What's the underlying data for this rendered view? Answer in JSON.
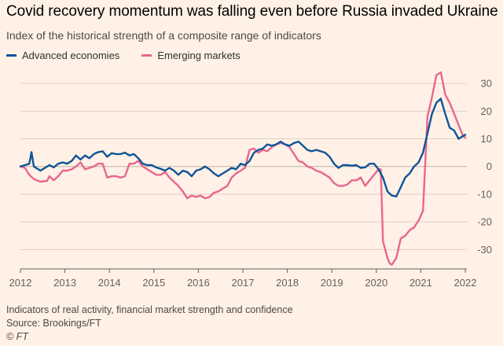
{
  "title": "Covid recovery momentum was falling even before Russia invaded Ukraine",
  "subtitle": "Index of the historical strength of a composite range of indicators",
  "footer": {
    "note": "Indicators of real activity, financial market strength and confidence",
    "source": "Source: Brookings/FT",
    "credit": "© FT"
  },
  "colors": {
    "background": "#fff1e5",
    "advanced": "#0f5499",
    "emerging": "#e8668f",
    "grid": "#dcd0c5",
    "zero": "#bfb3a8"
  },
  "chart_data": {
    "type": "line",
    "title": "Covid recovery momentum was falling even before Russia invaded Ukraine",
    "ylabel": "Index of the historical strength of a composite range of indicators",
    "xlabel": "",
    "xlim": [
      2012,
      2022
    ],
    "ylim": [
      -37,
      36
    ],
    "yticks": [
      30,
      20,
      10,
      0,
      -10,
      -20,
      -30
    ],
    "ytick_labels": [
      "30",
      "20",
      "10",
      "0",
      "-10",
      "-20",
      "-30"
    ],
    "xticks": [
      2012,
      2013,
      2014,
      2015,
      2016,
      2017,
      2018,
      2019,
      2020,
      2021,
      2022
    ],
    "xtick_labels": [
      "2012",
      "2013",
      "2014",
      "2015",
      "2016",
      "2017",
      "2018",
      "2019",
      "2020",
      "2021",
      "2022"
    ],
    "legend_position": "top-left",
    "series": [
      {
        "name": "Advanced economies",
        "color": "#0f5499",
        "x": [
          2012.0,
          2012.1,
          2012.2,
          2012.25,
          2012.3,
          2012.45,
          2012.55,
          2012.65,
          2012.75,
          2012.85,
          2012.95,
          2013.05,
          2013.15,
          2013.25,
          2013.35,
          2013.45,
          2013.55,
          2013.65,
          2013.75,
          2013.85,
          2013.95,
          2014.05,
          2014.15,
          2014.25,
          2014.35,
          2014.45,
          2014.55,
          2014.65,
          2014.75,
          2014.85,
          2014.95,
          2015.05,
          2015.15,
          2015.25,
          2015.35,
          2015.45,
          2015.55,
          2015.65,
          2015.75,
          2015.85,
          2015.95,
          2016.05,
          2016.15,
          2016.25,
          2016.35,
          2016.45,
          2016.55,
          2016.65,
          2016.75,
          2016.85,
          2016.95,
          2017.05,
          2017.15,
          2017.25,
          2017.35,
          2017.45,
          2017.55,
          2017.65,
          2017.75,
          2017.85,
          2017.95,
          2018.05,
          2018.15,
          2018.25,
          2018.35,
          2018.45,
          2018.55,
          2018.65,
          2018.75,
          2018.85,
          2018.95,
          2019.05,
          2019.15,
          2019.25,
          2019.35,
          2019.45,
          2019.55,
          2019.65,
          2019.75,
          2019.85,
          2019.95,
          2020.05,
          2020.15,
          2020.25,
          2020.35,
          2020.45,
          2020.55,
          2020.65,
          2020.75,
          2020.85,
          2020.95,
          2021.05,
          2021.15,
          2021.25,
          2021.35,
          2021.45,
          2021.55,
          2021.65,
          2021.75,
          2021.85,
          2021.95,
          2022.0
        ],
        "values": [
          0,
          0.5,
          1,
          5.2,
          0,
          -1.5,
          -0.5,
          0.5,
          -0.3,
          1,
          1.5,
          1,
          2,
          4,
          2.5,
          4,
          3,
          4.5,
          5.2,
          5.5,
          3.5,
          4.8,
          4.5,
          4.5,
          5,
          4,
          4.5,
          3,
          1,
          0.5,
          0.5,
          -0.3,
          -0.8,
          -1.5,
          -0.5,
          -1.5,
          -3,
          -1.5,
          -2,
          -3.5,
          -1.5,
          -1,
          0,
          -1,
          -2.5,
          -3.5,
          -2.5,
          -1.5,
          -0.5,
          -1,
          1,
          0.5,
          2,
          5,
          6,
          6.5,
          8,
          7.5,
          8,
          9,
          8,
          7.5,
          8.5,
          9,
          7.5,
          6,
          5.5,
          6,
          5.5,
          5,
          3.5,
          1,
          -0.5,
          0.5,
          0.5,
          0.3,
          0.5,
          -0.5,
          -0.3,
          1,
          1,
          -1,
          -4,
          -9,
          -10.5,
          -10.8,
          -7.5,
          -4,
          -2.5,
          0,
          1.5,
          5,
          12,
          19,
          23,
          24.5,
          19,
          14,
          13,
          10,
          11,
          11.5
        ]
      },
      {
        "name": "Emerging markets",
        "color": "#e8668f",
        "x": [
          2012.0,
          2012.1,
          2012.2,
          2012.3,
          2012.45,
          2012.6,
          2012.65,
          2012.75,
          2012.85,
          2012.95,
          2013.05,
          2013.15,
          2013.25,
          2013.35,
          2013.45,
          2013.55,
          2013.65,
          2013.75,
          2013.85,
          2013.95,
          2014.05,
          2014.15,
          2014.25,
          2014.35,
          2014.45,
          2014.55,
          2014.65,
          2014.75,
          2014.85,
          2014.95,
          2015.05,
          2015.15,
          2015.25,
          2015.35,
          2015.45,
          2015.55,
          2015.65,
          2015.75,
          2015.85,
          2015.95,
          2016.05,
          2016.15,
          2016.25,
          2016.35,
          2016.45,
          2016.55,
          2016.65,
          2016.75,
          2016.85,
          2016.95,
          2017.05,
          2017.15,
          2017.25,
          2017.35,
          2017.45,
          2017.55,
          2017.65,
          2017.75,
          2017.85,
          2017.95,
          2018.05,
          2018.15,
          2018.25,
          2018.35,
          2018.45,
          2018.55,
          2018.65,
          2018.75,
          2018.85,
          2018.95,
          2019.05,
          2019.15,
          2019.25,
          2019.35,
          2019.45,
          2019.55,
          2019.65,
          2019.75,
          2019.85,
          2019.95,
          2020.05,
          2020.1,
          2020.15,
          2020.25,
          2020.3,
          2020.35,
          2020.45,
          2020.55,
          2020.65,
          2020.75,
          2020.85,
          2020.95,
          2021.05,
          2021.15,
          2021.25,
          2021.35,
          2021.45,
          2021.55,
          2021.65,
          2021.75,
          2021.85,
          2021.95,
          2022.0
        ],
        "values": [
          0,
          -0.5,
          -3,
          -4.5,
          -5.5,
          -5.2,
          -3.5,
          -5,
          -3.5,
          -1.5,
          -1.5,
          -1,
          0,
          1.5,
          -1,
          -0.5,
          0,
          1,
          1,
          -4,
          -3.5,
          -3.5,
          -4,
          -3.5,
          1,
          1,
          2,
          0,
          -1,
          -2,
          -3,
          -3,
          -2,
          -4,
          -5.5,
          -7,
          -9,
          -11.5,
          -10.5,
          -11,
          -10.5,
          -11.5,
          -11,
          -9.5,
          -9,
          -8,
          -7,
          -4,
          -2.5,
          -1.5,
          -0.5,
          6,
          6.5,
          5,
          6,
          5.5,
          7,
          8,
          8.5,
          8,
          7,
          4.5,
          2,
          1.5,
          0,
          -0.5,
          -1.5,
          -2,
          -3,
          -4,
          -6,
          -7,
          -7,
          -6.5,
          -5,
          -5,
          -4,
          -7,
          -5,
          -3,
          -1,
          -1,
          -27,
          -33,
          -35,
          -35.5,
          -33,
          -26,
          -25,
          -23,
          -22,
          -19.5,
          -16,
          18,
          25,
          33,
          34,
          26,
          23,
          19,
          15,
          11,
          10.5
        ]
      }
    ]
  }
}
